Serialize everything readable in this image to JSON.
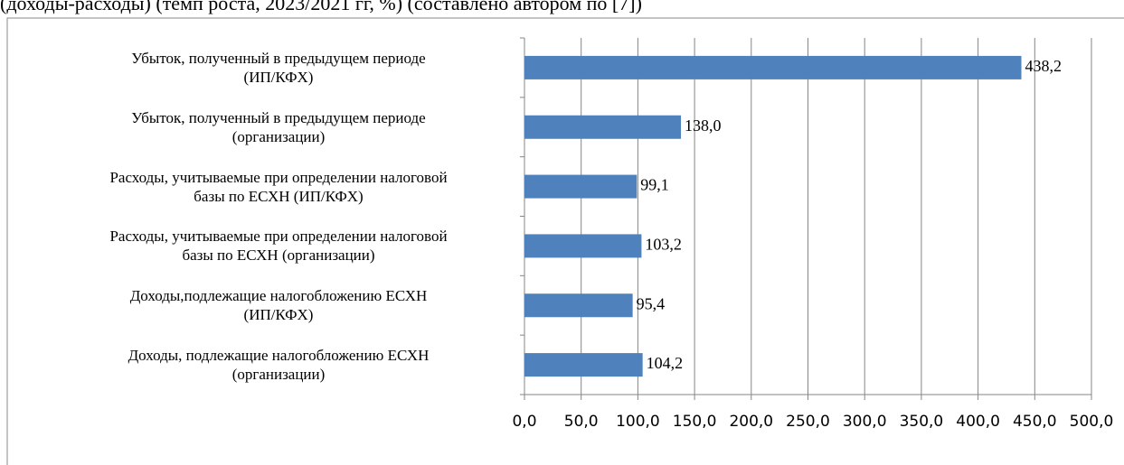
{
  "chart_data": {
    "type": "bar",
    "orientation": "horizontal",
    "caption": "(доходы-расходы) (темп роста, 2023/2021 гг, %) (составлено автором по [7])",
    "categories": [
      "Убыток, полученный в предыдущем периоде\n(ИП/КФХ)",
      "Убыток, полученный в предыдущем периоде\n(организации)",
      "Расходы, учитываемые при определении налоговой\nбазы по ЕСХН (ИП/КФХ)",
      "Расходы, учитываемые при определении налоговой\nбазы по ЕСХН (организации)",
      "Доходы,подлежащие налогобложению ЕСХН\n(ИП/КФХ)",
      "Доходы, подлежащие налогобложению ЕСХН\n(организации)"
    ],
    "values": [
      438.2,
      138.0,
      99.1,
      103.2,
      95.4,
      104.2
    ],
    "value_labels": [
      "438,2",
      "138,0",
      "99,1",
      "103,2",
      "95,4",
      "104,2"
    ],
    "color": "#4f81bd",
    "xlim": [
      0,
      500
    ],
    "xticks": [
      {
        "value": 0,
        "label": "0,0"
      },
      {
        "value": 50,
        "label": "50,0"
      },
      {
        "value": 100,
        "label": "100,0"
      },
      {
        "value": 150,
        "label": "150,0"
      },
      {
        "value": 200,
        "label": "200,0"
      },
      {
        "value": 250,
        "label": "250,0"
      },
      {
        "value": 300,
        "label": "300,0"
      },
      {
        "value": 350,
        "label": "350,0"
      },
      {
        "value": 400,
        "label": "400,0"
      },
      {
        "value": 450,
        "label": "450,0"
      },
      {
        "value": 500,
        "label": "500,0"
      }
    ],
    "grid": true
  }
}
